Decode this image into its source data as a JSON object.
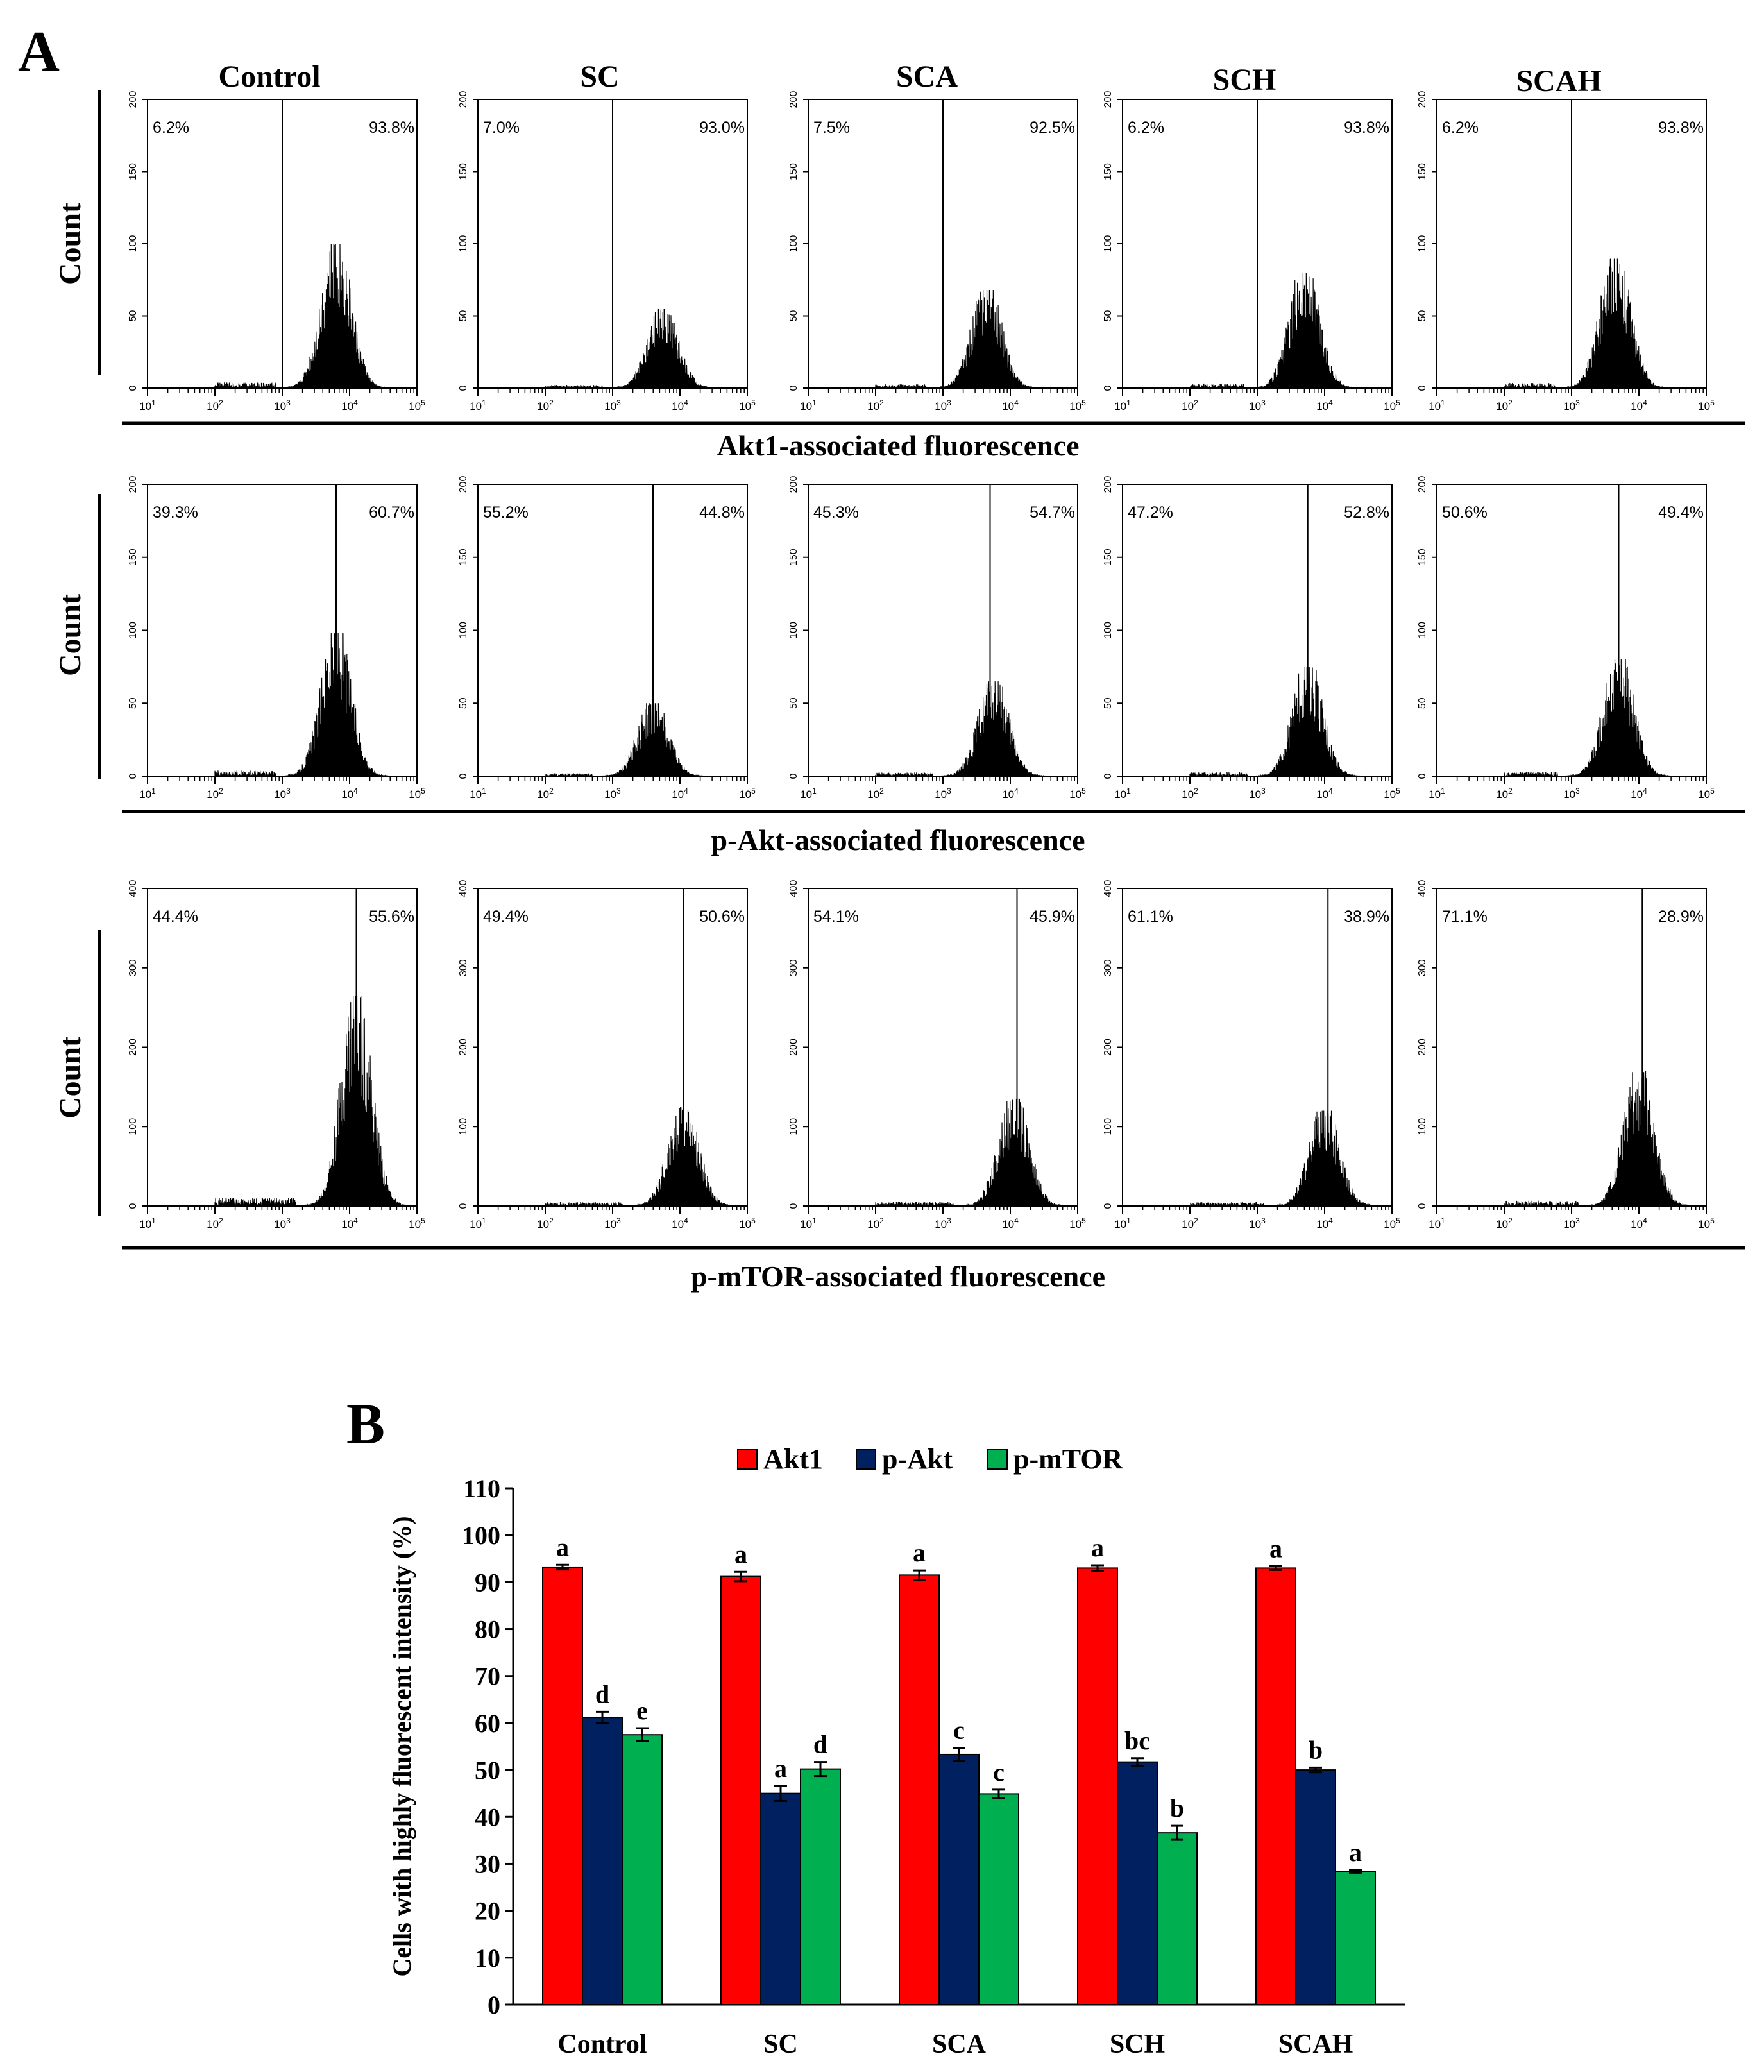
{
  "figure": {
    "panel_a_label": "A",
    "panel_b_label": "B"
  },
  "histograms": {
    "columns": [
      "Control",
      "SC",
      "SCA",
      "SCH",
      "SCAH"
    ],
    "y_label": "Count",
    "x_ticks": [
      "10^1",
      "10^2",
      "10^3",
      "10^4",
      "10^5"
    ],
    "rows": [
      {
        "marker": "Akt1",
        "x_label": "Akt1-associated fluorescence",
        "y_ticks": [
          "0",
          "50",
          "100",
          "150",
          "200"
        ],
        "y_max": 200,
        "low_pct": [
          "6.2%",
          "7.0%",
          "7.5%",
          "6.2%",
          "6.2%"
        ],
        "high_pct": [
          "93.8%",
          "93.0%",
          "92.5%",
          "93.8%",
          "93.8%"
        ],
        "gate_log": [
          3.0,
          3.0,
          3.0,
          3.0,
          3.0
        ],
        "peak_log": [
          3.8,
          3.75,
          3.65,
          3.7,
          3.65
        ],
        "peak_count": [
          100,
          55,
          68,
          80,
          90
        ]
      },
      {
        "marker": "p-Akt",
        "x_label": "p-Akt-associated fluorescence",
        "y_ticks": [
          "0",
          "50",
          "100",
          "150",
          "200"
        ],
        "y_max": 200,
        "low_pct": [
          "39.3%",
          "55.2%",
          "45.3%",
          "47.2%",
          "50.6%"
        ],
        "high_pct": [
          "60.7%",
          "44.8%",
          "54.7%",
          "52.8%",
          "49.4%"
        ],
        "gate_log": [
          3.8,
          3.6,
          3.7,
          3.75,
          3.7
        ],
        "peak_log": [
          3.8,
          3.6,
          3.75,
          3.75,
          3.7
        ],
        "peak_count": [
          98,
          50,
          65,
          75,
          80
        ]
      },
      {
        "marker": "p-mTOR",
        "x_label": "p-mTOR-associated fluorescence",
        "y_ticks": [
          "0",
          "100",
          "200",
          "300",
          "400"
        ],
        "y_max": 400,
        "low_pct": [
          "44.4%",
          "49.4%",
          "54.1%",
          "61.1%",
          "71.1%"
        ],
        "high_pct": [
          "55.6%",
          "50.6%",
          "45.9%",
          "38.9%",
          "28.9%"
        ],
        "gate_log": [
          4.1,
          4.05,
          4.1,
          4.05,
          4.05
        ],
        "peak_log": [
          4.1,
          4.05,
          4.05,
          4.0,
          4.0
        ],
        "peak_count": [
          265,
          125,
          135,
          120,
          170
        ]
      }
    ]
  },
  "chart_data": {
    "type": "bar",
    "title": "",
    "categories": [
      "Control",
      "SC",
      "SCA",
      "SCH",
      "SCAH"
    ],
    "ylabel": "Cells with highly fluorescent intensity (%)",
    "xlabel": "",
    "ylim": [
      0,
      110
    ],
    "yticks": [
      "0",
      "10",
      "20",
      "30",
      "40",
      "50",
      "60",
      "70",
      "80",
      "90",
      "100",
      "110"
    ],
    "legend_position": "top",
    "series": [
      {
        "name": "Akt1",
        "color": "#ff0000",
        "values": [
          93.2,
          91.2,
          91.5,
          93.0,
          93.0
        ],
        "errors": [
          0.5,
          1.0,
          1.0,
          0.6,
          0.4
        ],
        "letters": [
          "a",
          "a",
          "a",
          "a",
          "a"
        ]
      },
      {
        "name": "p-Akt",
        "color": "#002060",
        "values": [
          61.2,
          45.0,
          53.3,
          51.7,
          50.0
        ],
        "errors": [
          1.2,
          1.6,
          1.4,
          0.8,
          0.5
        ],
        "letters": [
          "d",
          "a",
          "c",
          "bc",
          "b"
        ]
      },
      {
        "name": "p-mTOR",
        "color": "#00b050",
        "values": [
          57.5,
          50.2,
          44.9,
          36.6,
          28.4
        ],
        "errors": [
          1.4,
          1.5,
          0.9,
          1.5,
          0.3
        ],
        "letters": [
          "e",
          "d",
          "c",
          "b",
          "a"
        ]
      }
    ]
  }
}
